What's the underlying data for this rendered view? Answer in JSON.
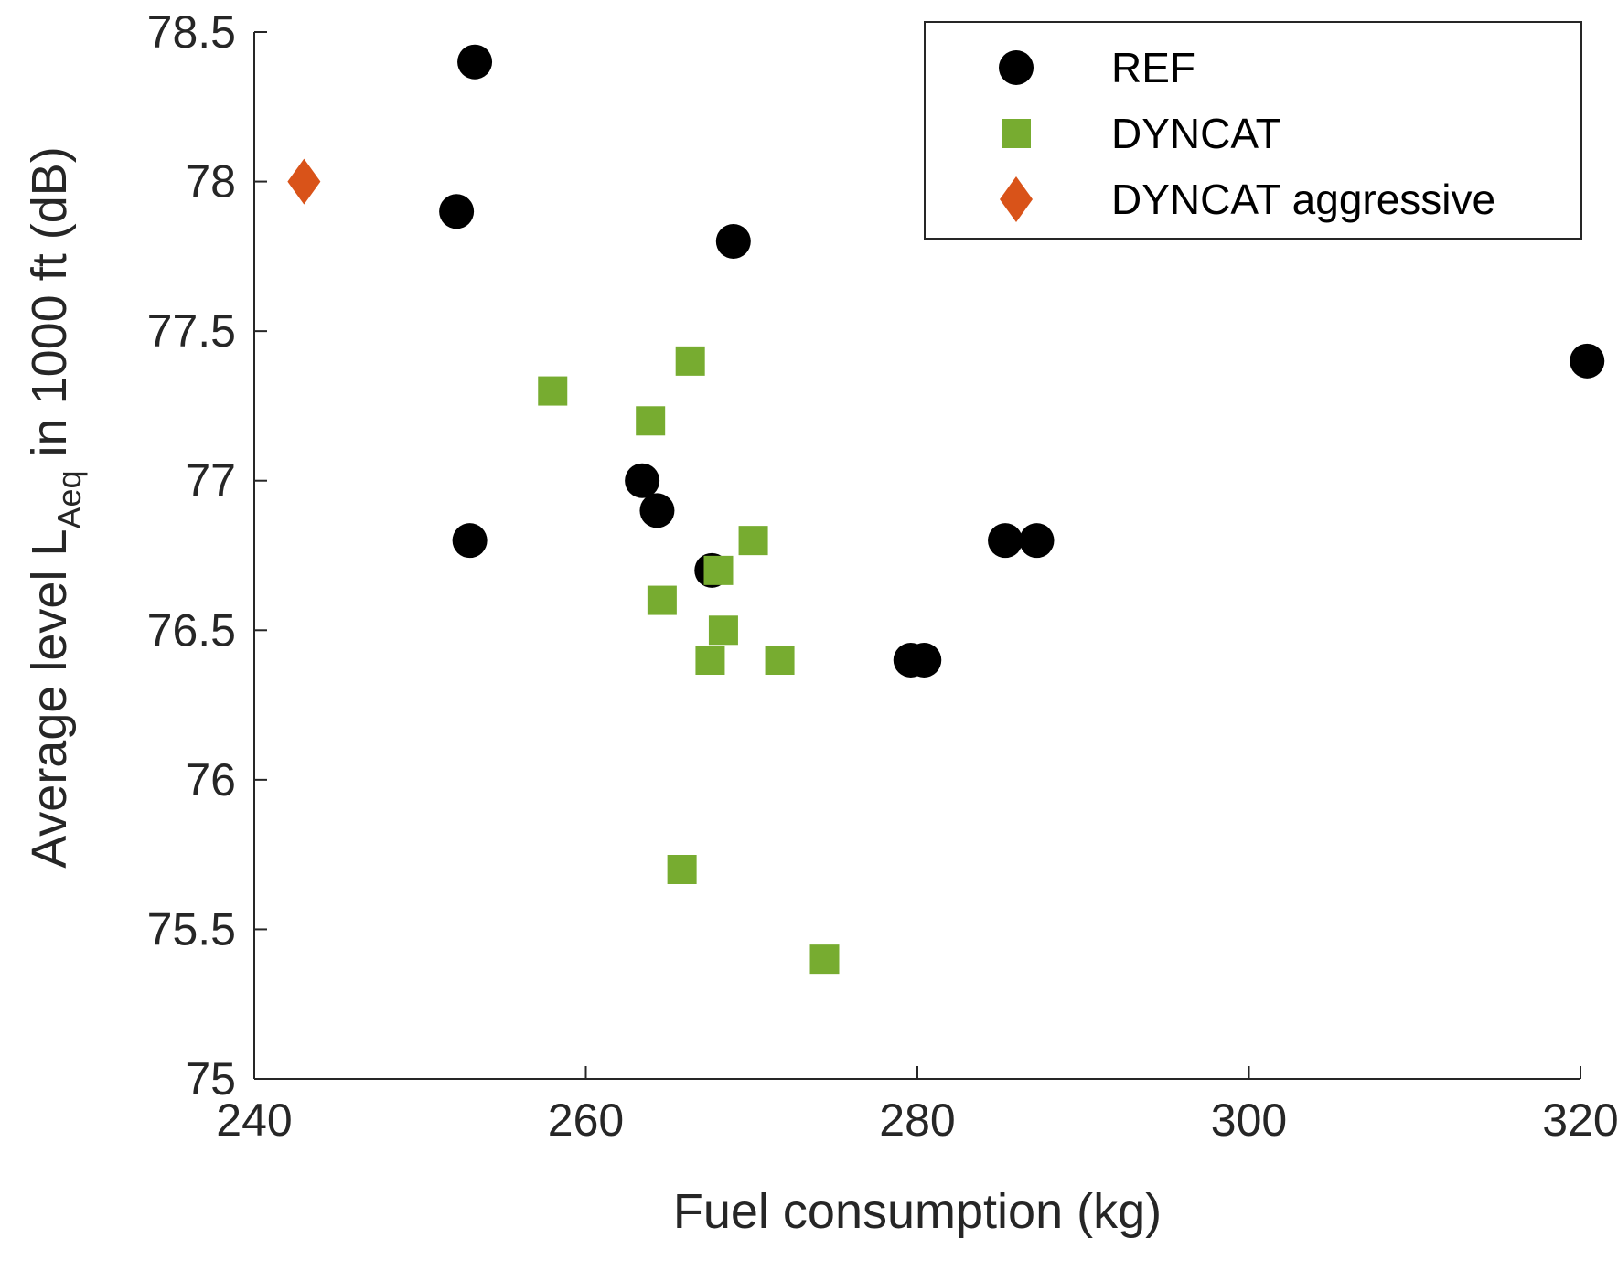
{
  "chart_data": {
    "type": "scatter",
    "title": "",
    "xlabel": "Fuel consumption (kg)",
    "ylabel": {
      "prefix": "Average level L",
      "subscript": "Aeq",
      "suffix": " in 1000 ft (dB)"
    },
    "xlim": [
      240,
      320
    ],
    "ylim": [
      75,
      78.5
    ],
    "xticks": [
      "240",
      "260",
      "280",
      "300",
      "320"
    ],
    "xtick_values": [
      240,
      260,
      280,
      300,
      320
    ],
    "yticks": [
      "75",
      "75.5",
      "76",
      "76.5",
      "77",
      "77.5",
      "78",
      "78.5"
    ],
    "ytick_values": [
      75,
      75.5,
      76,
      76.5,
      77,
      77.5,
      78,
      78.5
    ],
    "grid": false,
    "legend_position": "top-right",
    "series": [
      {
        "name": "REF",
        "marker": "circle",
        "color": "#000000",
        "points": [
          [
            253.3,
            78.4
          ],
          [
            252.2,
            77.9
          ],
          [
            268.9,
            77.8
          ],
          [
            320.4,
            77.4
          ],
          [
            263.4,
            77.0
          ],
          [
            264.3,
            76.9
          ],
          [
            253.0,
            76.8
          ],
          [
            285.3,
            76.8
          ],
          [
            287.2,
            76.8
          ],
          [
            267.6,
            76.7
          ],
          [
            279.6,
            76.4
          ],
          [
            280.4,
            76.4
          ]
        ]
      },
      {
        "name": "DYNCAT",
        "marker": "square",
        "color": "#77AC30",
        "points": [
          [
            266.3,
            77.4
          ],
          [
            258.0,
            77.3
          ],
          [
            263.9,
            77.2
          ],
          [
            270.1,
            76.8
          ],
          [
            268.0,
            76.7
          ],
          [
            264.6,
            76.6
          ],
          [
            268.3,
            76.5
          ],
          [
            267.5,
            76.4
          ],
          [
            271.7,
            76.4
          ],
          [
            265.8,
            75.7
          ],
          [
            274.4,
            75.4
          ]
        ]
      },
      {
        "name": "DYNCAT aggressive",
        "marker": "diamond",
        "color": "#D95319",
        "points": [
          [
            243.0,
            78.0
          ]
        ]
      }
    ]
  }
}
